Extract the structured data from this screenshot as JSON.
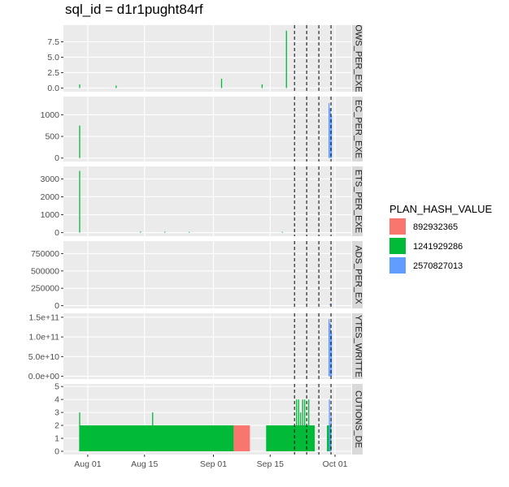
{
  "title": "sql_id = d1r1pught84rf",
  "colors": {
    "panel_bg": "#EBEBEB",
    "grid_major": "#FFFFFF",
    "strip_bg": "#D9D9D9",
    "892932365": "#F8766D",
    "1241929286": "#00BA38",
    "2570827013": "#619CFF"
  },
  "chart_data": {
    "type": "bar",
    "x_axis": {
      "type": "date",
      "range": [
        "2024-07-26",
        "2024-10-05"
      ],
      "ticks": [
        {
          "date": "2024-08-01",
          "label": "Aug 01"
        },
        {
          "date": "2024-08-15",
          "label": "Aug 15"
        },
        {
          "date": "2024-09-01",
          "label": "Sep 01"
        },
        {
          "date": "2024-09-15",
          "label": "Sep 15"
        },
        {
          "date": "2024-10-01",
          "label": "Oct 01"
        }
      ]
    },
    "vlines": [
      "2024-09-21",
      "2024-09-24",
      "2024-09-27",
      "2024-09-30"
    ],
    "legend": {
      "title": "PLAN_HASH_VALUE",
      "position": "right",
      "items": [
        {
          "label": "892932365",
          "color": "#F8766D"
        },
        {
          "label": "1241929286",
          "color": "#00BA38"
        },
        {
          "label": "2570827013",
          "color": "#619CFF"
        }
      ]
    },
    "facets": [
      {
        "strip": "OWS_PER_EXE",
        "ylim": [
          -0.6,
          10.2
        ],
        "yticks": [
          {
            "v": 0,
            "label": "0.0"
          },
          {
            "v": 2.5,
            "label": "2.5"
          },
          {
            "v": 5,
            "label": "5.0"
          },
          {
            "v": 7.5,
            "label": "7.5"
          }
        ],
        "bars": [
          {
            "x": "2024-07-30",
            "y": 0.6,
            "plan": "1241929286"
          },
          {
            "x": "2024-08-08",
            "y": 0.4,
            "plan": "1241929286"
          },
          {
            "x": "2024-09-03",
            "y": 1.5,
            "plan": "1241929286"
          },
          {
            "x": "2024-09-13",
            "y": 0.6,
            "plan": "1241929286"
          },
          {
            "x": "2024-09-19",
            "y": 9.3,
            "plan": "1241929286"
          }
        ]
      },
      {
        "strip": "EC_PER_EXE",
        "ylim": [
          -80,
          1420
        ],
        "yticks": [
          {
            "v": 0,
            "label": "0"
          },
          {
            "v": 500,
            "label": "500"
          },
          {
            "v": 1000,
            "label": "1000"
          }
        ],
        "bars": [
          {
            "x": "2024-07-30",
            "y": 750,
            "plan": "1241929286"
          },
          {
            "x": "2024-09-29.5",
            "y": 1270,
            "plan": "2570827013"
          },
          {
            "x": "2024-09-29.8",
            "y": 1150,
            "plan": "2570827013"
          },
          {
            "x": "2024-09-30.1",
            "y": 980,
            "plan": "2570827013"
          }
        ]
      },
      {
        "strip": "ETS_PER_EXE",
        "ylim": [
          -200,
          3700
        ],
        "yticks": [
          {
            "v": 0,
            "label": "0"
          },
          {
            "v": 1000,
            "label": "1000"
          },
          {
            "v": 2000,
            "label": "2000"
          },
          {
            "v": 3000,
            "label": "3000"
          }
        ],
        "bars": [
          {
            "x": "2024-07-30",
            "y": 3450,
            "plan": "1241929286"
          },
          {
            "x": "2024-08-14",
            "y": 60,
            "plan": "1241929286"
          },
          {
            "x": "2024-08-20",
            "y": 50,
            "plan": "1241929286"
          },
          {
            "x": "2024-08-26",
            "y": 40,
            "plan": "1241929286"
          },
          {
            "x": "2024-09-18",
            "y": 40,
            "plan": "1241929286"
          }
        ]
      },
      {
        "strip": "ADS_PER_EX",
        "ylim": [
          -40000,
          930000
        ],
        "yticks": [
          {
            "v": 0,
            "label": "0"
          },
          {
            "v": 250000,
            "label": "250000"
          },
          {
            "v": 500000,
            "label": "500000"
          },
          {
            "v": 750000,
            "label": "750000"
          }
        ],
        "bars": [
          {
            "x": "2024-09-29.8",
            "y": 25000,
            "plan": "2570827013"
          }
        ]
      },
      {
        "strip": "YTES_WRITTE",
        "ylim": [
          -7000000000.0,
          160000000000.0
        ],
        "yticks": [
          {
            "v": 0,
            "label": "0.0e+00"
          },
          {
            "v": 50000000000.0,
            "label": "5.0e+10"
          },
          {
            "v": 100000000000.0,
            "label": "1.0e+11"
          },
          {
            "v": 150000000000.0,
            "label": "1.5e+11"
          }
        ],
        "bars": [
          {
            "x": "2024-09-29.5",
            "y": 145000000000.0,
            "plan": "2570827013"
          },
          {
            "x": "2024-09-29.8",
            "y": 135000000000.0,
            "plan": "2570827013"
          },
          {
            "x": "2024-09-30.1",
            "y": 110000000000.0,
            "plan": "2570827013"
          }
        ]
      },
      {
        "strip": "CUTIONS_DE",
        "ylim": [
          -0.25,
          5.2
        ],
        "yticks": [
          {
            "v": 0,
            "label": "0"
          },
          {
            "v": 1,
            "label": "1"
          },
          {
            "v": 2,
            "label": "2"
          },
          {
            "v": 3,
            "label": "3"
          },
          {
            "v": 4,
            "label": "4"
          },
          {
            "v": 5,
            "label": "5"
          }
        ],
        "ranges": [
          {
            "from": "2024-07-30",
            "to": "2024-09-06",
            "y": 2,
            "plan": "1241929286"
          },
          {
            "from": "2024-09-06",
            "to": "2024-09-10",
            "y": 2,
            "plan": "892932365"
          },
          {
            "from": "2024-09-14",
            "to": "2024-09-26",
            "y": 2,
            "plan": "1241929286"
          },
          {
            "from": "2024-09-29",
            "to": "2024-09-30",
            "y": 2,
            "plan": "1241929286"
          }
        ],
        "bars": [
          {
            "x": "2024-07-30",
            "y": 3,
            "plan": "1241929286"
          },
          {
            "x": "2024-08-17",
            "y": 3,
            "plan": "1241929286"
          },
          {
            "x": "2024-09-21.5",
            "y": 4,
            "plan": "1241929286"
          },
          {
            "x": "2024-09-22",
            "y": 4,
            "plan": "1241929286"
          },
          {
            "x": "2024-09-22.5",
            "y": 3,
            "plan": "1241929286"
          },
          {
            "x": "2024-09-23",
            "y": 4,
            "plan": "1241929286"
          },
          {
            "x": "2024-09-23.5",
            "y": 4,
            "plan": "1241929286"
          },
          {
            "x": "2024-09-24.5",
            "y": 4,
            "plan": "1241929286"
          },
          {
            "x": "2024-09-29.6",
            "y": 4,
            "plan": "2570827013"
          },
          {
            "x": "2024-09-30",
            "y": 3,
            "plan": "2570827013"
          }
        ]
      }
    ]
  }
}
